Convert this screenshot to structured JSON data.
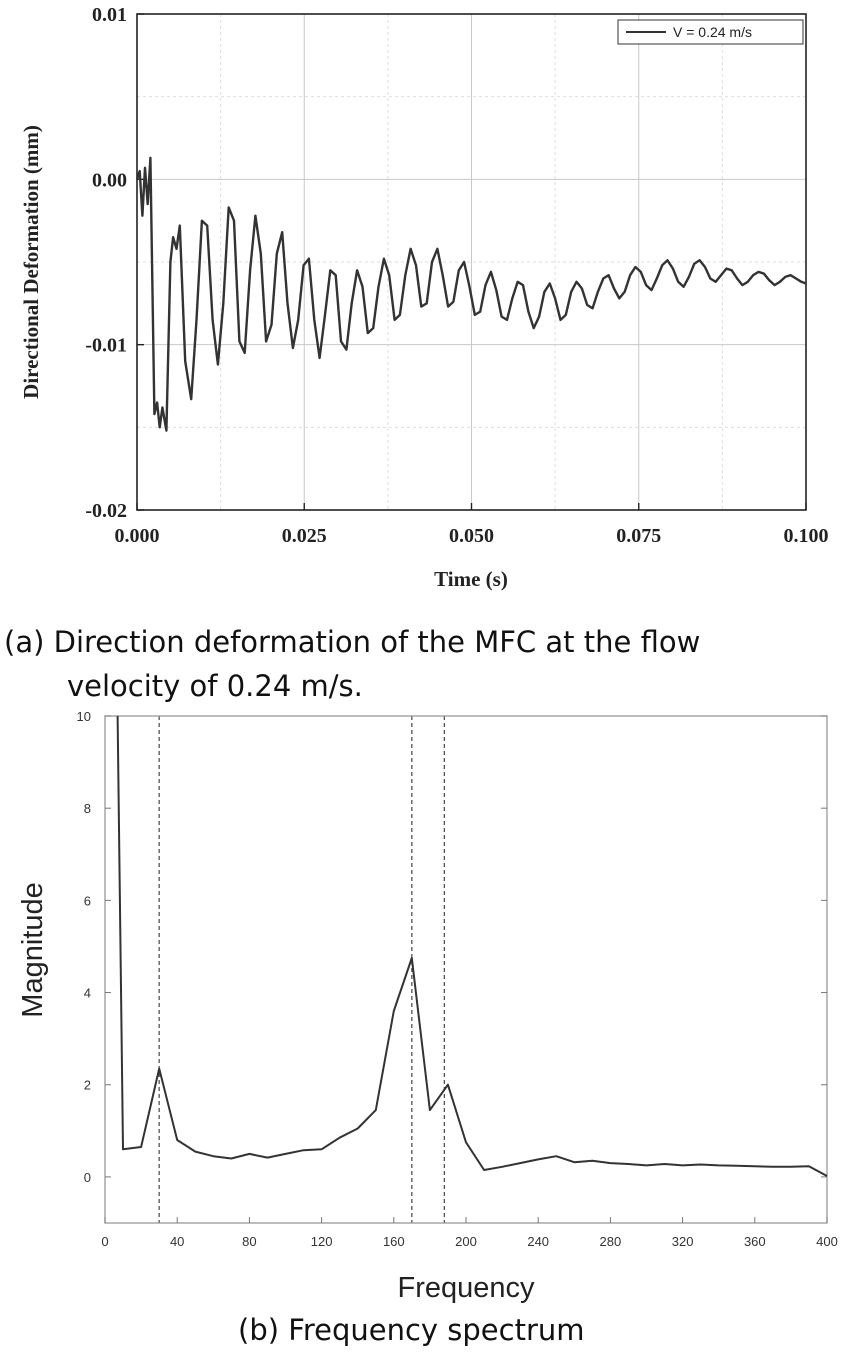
{
  "chart_data": [
    {
      "type": "line",
      "title": "",
      "xlabel": "Time (s)",
      "ylabel": "Directional Deformation (mm)",
      "xlim": [
        0,
        0.1
      ],
      "ylim": [
        -0.02,
        0.01
      ],
      "xticks": [
        "0.000",
        "0.025",
        "0.050",
        "0.075",
        "0.100"
      ],
      "yticks": [
        "0.01",
        "0.00",
        "-0.01",
        "-0.02"
      ],
      "grid": true,
      "legend_position": "top-right",
      "series": [
        {
          "name": "V = 0.24 m/s",
          "x": [
            0.0,
            0.0004,
            0.0008,
            0.0012,
            0.0016,
            0.002,
            0.0026,
            0.003,
            0.0034,
            0.0038,
            0.0044,
            0.005,
            0.0054,
            0.0059,
            0.0064,
            0.0072,
            0.0081,
            0.0089,
            0.0097,
            0.0105,
            0.0113,
            0.0121,
            0.0129,
            0.0137,
            0.0145,
            0.0153,
            0.0161,
            0.0169,
            0.0177,
            0.0185,
            0.0193,
            0.0201,
            0.0209,
            0.0217,
            0.0225,
            0.0233,
            0.0241,
            0.0249,
            0.0257,
            0.0265,
            0.0273,
            0.0281,
            0.0289,
            0.0297,
            0.0305,
            0.0313,
            0.0321,
            0.0329,
            0.0337,
            0.0345,
            0.0353,
            0.0361,
            0.0369,
            0.0377,
            0.0385,
            0.0393,
            0.0401,
            0.0409,
            0.0417,
            0.0425,
            0.0433,
            0.0441,
            0.0449,
            0.0457,
            0.0465,
            0.0473,
            0.0481,
            0.0489,
            0.0497,
            0.0505,
            0.0513,
            0.0521,
            0.0529,
            0.0537,
            0.0545,
            0.0553,
            0.0561,
            0.0569,
            0.0577,
            0.0585,
            0.0593,
            0.0601,
            0.0609,
            0.0617,
            0.0625,
            0.0633,
            0.0641,
            0.0649,
            0.0657,
            0.0665,
            0.0673,
            0.0681,
            0.0689,
            0.0697,
            0.0705,
            0.0713,
            0.0721,
            0.0729,
            0.0737,
            0.0745,
            0.0753,
            0.0761,
            0.0769,
            0.0777,
            0.0785,
            0.0793,
            0.0801,
            0.0809,
            0.0817,
            0.0825,
            0.0833,
            0.0841,
            0.0849,
            0.0857,
            0.0865,
            0.0873,
            0.0881,
            0.0889,
            0.0897,
            0.0905,
            0.0913,
            0.0921,
            0.0929,
            0.0937,
            0.0945,
            0.0953,
            0.0961,
            0.0969,
            0.0977,
            0.0985,
            0.0993,
            0.1
          ],
          "y": [
            0.0,
            0.0005,
            -0.0022,
            0.0007,
            -0.0015,
            0.0013,
            -0.0142,
            -0.0135,
            -0.015,
            -0.0138,
            -0.0152,
            -0.005,
            -0.0035,
            -0.0042,
            -0.0028,
            -0.011,
            -0.0133,
            -0.0085,
            -0.0025,
            -0.0028,
            -0.0085,
            -0.0112,
            -0.0075,
            -0.0017,
            -0.0025,
            -0.0098,
            -0.0105,
            -0.0055,
            -0.0022,
            -0.0045,
            -0.0098,
            -0.0088,
            -0.0045,
            -0.0032,
            -0.0075,
            -0.0102,
            -0.0085,
            -0.0052,
            -0.0048,
            -0.0085,
            -0.0108,
            -0.0082,
            -0.0055,
            -0.0058,
            -0.0098,
            -0.0103,
            -0.0075,
            -0.0055,
            -0.0065,
            -0.0093,
            -0.009,
            -0.0065,
            -0.0048,
            -0.0058,
            -0.0085,
            -0.0082,
            -0.0058,
            -0.0042,
            -0.0052,
            -0.0077,
            -0.0075,
            -0.005,
            -0.0042,
            -0.0058,
            -0.0077,
            -0.0074,
            -0.0055,
            -0.005,
            -0.0065,
            -0.0082,
            -0.008,
            -0.0064,
            -0.0056,
            -0.0067,
            -0.0083,
            -0.0085,
            -0.0072,
            -0.0062,
            -0.0064,
            -0.008,
            -0.009,
            -0.0083,
            -0.0068,
            -0.0063,
            -0.0072,
            -0.0085,
            -0.0082,
            -0.0068,
            -0.0062,
            -0.0066,
            -0.0076,
            -0.0078,
            -0.0068,
            -0.006,
            -0.0058,
            -0.0066,
            -0.0072,
            -0.0068,
            -0.0058,
            -0.0053,
            -0.0056,
            -0.0064,
            -0.0067,
            -0.006,
            -0.0052,
            -0.0049,
            -0.0054,
            -0.0062,
            -0.0065,
            -0.0059,
            -0.0051,
            -0.0049,
            -0.0053,
            -0.006,
            -0.0062,
            -0.0058,
            -0.0054,
            -0.0055,
            -0.006,
            -0.0064,
            -0.0062,
            -0.0058,
            -0.0056,
            -0.0057,
            -0.0061,
            -0.0064,
            -0.0062,
            -0.0059,
            -0.0058,
            -0.006,
            -0.0062,
            -0.0063
          ]
        }
      ]
    },
    {
      "type": "line",
      "title": "",
      "xlabel": "Frequency",
      "ylabel": "Magnitude",
      "xlim": [
        0,
        400
      ],
      "ylim": [
        -1,
        10
      ],
      "xticks": [
        "0",
        "40",
        "80",
        "120",
        "160",
        "200",
        "240",
        "280",
        "320",
        "360",
        "400"
      ],
      "yticks": [
        "0",
        "2",
        "4",
        "6",
        "8",
        "10"
      ],
      "grid": false,
      "reference_lines_x": [
        30,
        170,
        188
      ],
      "series": [
        {
          "x": [
            7,
            10,
            20,
            30,
            40,
            50,
            60,
            70,
            80,
            90,
            100,
            110,
            120,
            130,
            140,
            150,
            160,
            170,
            180,
            190,
            200,
            210,
            220,
            230,
            240,
            250,
            260,
            270,
            280,
            290,
            300,
            310,
            320,
            330,
            340,
            350,
            360,
            370,
            380,
            390,
            400
          ],
          "y": [
            10.5,
            0.6,
            0.65,
            2.35,
            0.8,
            0.55,
            0.45,
            0.4,
            0.5,
            0.42,
            0.5,
            0.58,
            0.6,
            0.85,
            1.05,
            1.45,
            3.6,
            4.75,
            1.45,
            2.0,
            0.75,
            0.15,
            0.22,
            0.3,
            0.38,
            0.45,
            0.32,
            0.35,
            0.3,
            0.28,
            0.25,
            0.28,
            0.25,
            0.27,
            0.25,
            0.24,
            0.23,
            0.22,
            0.22,
            0.23,
            0.02
          ]
        }
      ]
    }
  ],
  "captions": {
    "a_line1": "(a)  Direction deformation of the MFC at the flow",
    "a_line2": "velocity of 0.24 m/s.",
    "b": "(b) Frequency spectrum"
  }
}
